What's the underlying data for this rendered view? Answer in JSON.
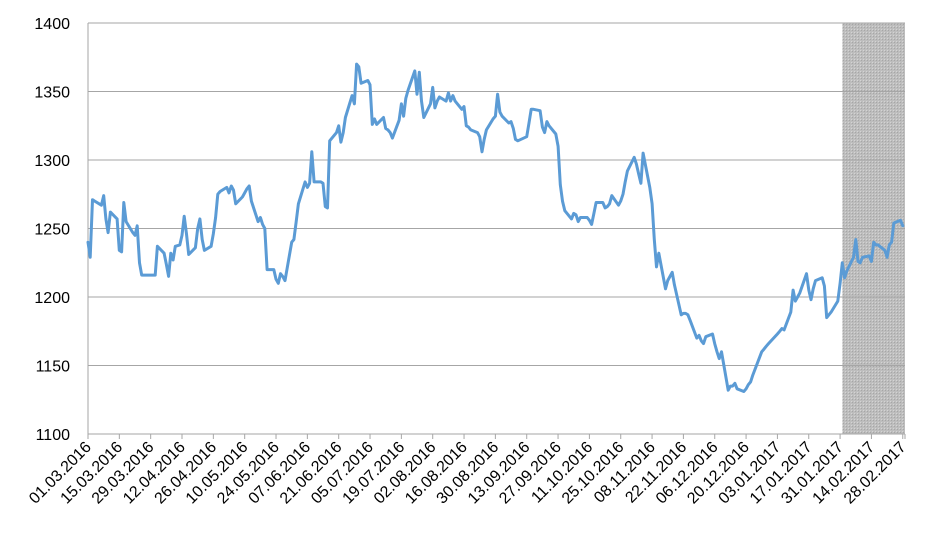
{
  "chart_data": {
    "type": "line",
    "title": "",
    "xlabel": "",
    "ylabel": "",
    "ylim": [
      1100,
      1400
    ],
    "y_ticks": [
      1100,
      1150,
      1200,
      1250,
      1300,
      1350,
      1400
    ],
    "grid": true,
    "legend": "none",
    "shaded_region": {
      "start": "2017-02-01",
      "end": "2017-03-01",
      "color": "#bfbfbf"
    },
    "x_tick_labels": [
      "01.03.2016",
      "15.03.2016",
      "29.03.2016",
      "12.04.2016",
      "26.04.2016",
      "10.05.2016",
      "24.05.2016",
      "07.06.2016",
      "21.06.2016",
      "05.07.2016",
      "19.07.2016",
      "02.08.2016",
      "16.08.2016",
      "30.08.2016",
      "13.09.2016",
      "27.09.2016",
      "11.10.2016",
      "25.10.2016",
      "08.11.2016",
      "22.11.2016",
      "06.12.2016",
      "20.12.2016",
      "03.01.2017",
      "17.01.2017",
      "31.01.2017",
      "14.02.2017",
      "28.02.2017"
    ],
    "series": [
      {
        "color": "#5b9bd5",
        "points": [
          [
            "2016-03-01",
            1240
          ],
          [
            "2016-03-02",
            1229
          ],
          [
            "2016-03-03",
            1271
          ],
          [
            "2016-03-04",
            1270
          ],
          [
            "2016-03-07",
            1267
          ],
          [
            "2016-03-08",
            1274
          ],
          [
            "2016-03-09",
            1257
          ],
          [
            "2016-03-10",
            1247
          ],
          [
            "2016-03-11",
            1262
          ],
          [
            "2016-03-14",
            1257
          ],
          [
            "2016-03-15",
            1234
          ],
          [
            "2016-03-16",
            1233
          ],
          [
            "2016-03-17",
            1269
          ],
          [
            "2016-03-18",
            1255
          ],
          [
            "2016-03-21",
            1247
          ],
          [
            "2016-03-22",
            1245
          ],
          [
            "2016-03-23",
            1252
          ],
          [
            "2016-03-24",
            1225
          ],
          [
            "2016-03-25",
            1216
          ],
          [
            "2016-03-31",
            1216
          ],
          [
            "2016-04-01",
            1237
          ],
          [
            "2016-04-04",
            1232
          ],
          [
            "2016-04-05",
            1224
          ],
          [
            "2016-04-06",
            1215
          ],
          [
            "2016-04-07",
            1232
          ],
          [
            "2016-04-08",
            1227
          ],
          [
            "2016-04-09",
            1237
          ],
          [
            "2016-04-11",
            1238
          ],
          [
            "2016-04-12",
            1245
          ],
          [
            "2016-04-13",
            1259
          ],
          [
            "2016-04-14",
            1246
          ],
          [
            "2016-04-15",
            1231
          ],
          [
            "2016-04-18",
            1236
          ],
          [
            "2016-04-19",
            1250
          ],
          [
            "2016-04-20",
            1257
          ],
          [
            "2016-04-21",
            1242
          ],
          [
            "2016-04-22",
            1234
          ],
          [
            "2016-04-25",
            1237
          ],
          [
            "2016-04-26",
            1246
          ],
          [
            "2016-04-27",
            1258
          ],
          [
            "2016-04-28",
            1275
          ],
          [
            "2016-04-29",
            1277
          ],
          [
            "2016-05-02",
            1280
          ],
          [
            "2016-05-03",
            1276
          ],
          [
            "2016-05-04",
            1281
          ],
          [
            "2016-05-05",
            1278
          ],
          [
            "2016-05-06",
            1268
          ],
          [
            "2016-05-09",
            1273
          ],
          [
            "2016-05-10",
            1276
          ],
          [
            "2016-05-11",
            1279
          ],
          [
            "2016-05-12",
            1281
          ],
          [
            "2016-05-13",
            1270
          ],
          [
            "2016-05-16",
            1255
          ],
          [
            "2016-05-17",
            1258
          ],
          [
            "2016-05-18",
            1253
          ],
          [
            "2016-05-19",
            1250
          ],
          [
            "2016-05-20",
            1220
          ],
          [
            "2016-05-23",
            1220
          ],
          [
            "2016-05-24",
            1213
          ],
          [
            "2016-05-25",
            1210
          ],
          [
            "2016-05-26",
            1217
          ],
          [
            "2016-05-27",
            1215
          ],
          [
            "2016-05-28",
            1212
          ],
          [
            "2016-05-31",
            1240
          ],
          [
            "2016-06-01",
            1242
          ],
          [
            "2016-06-02",
            1255
          ],
          [
            "2016-06-03",
            1268
          ],
          [
            "2016-06-06",
            1284
          ],
          [
            "2016-06-07",
            1280
          ],
          [
            "2016-06-08",
            1283
          ],
          [
            "2016-06-09",
            1306
          ],
          [
            "2016-06-10",
            1284
          ],
          [
            "2016-06-13",
            1284
          ],
          [
            "2016-06-14",
            1283
          ],
          [
            "2016-06-15",
            1266
          ],
          [
            "2016-06-16",
            1265
          ],
          [
            "2016-06-17",
            1314
          ],
          [
            "2016-06-20",
            1320
          ],
          [
            "2016-06-21",
            1325
          ],
          [
            "2016-06-22",
            1313
          ],
          [
            "2016-06-23",
            1320
          ],
          [
            "2016-06-24",
            1331
          ],
          [
            "2016-06-27",
            1347
          ],
          [
            "2016-06-28",
            1341
          ],
          [
            "2016-06-29",
            1370
          ],
          [
            "2016-06-30",
            1368
          ],
          [
            "2016-07-01",
            1356
          ],
          [
            "2016-07-04",
            1358
          ],
          [
            "2016-07-05",
            1355
          ],
          [
            "2016-07-06",
            1326
          ],
          [
            "2016-07-07",
            1330
          ],
          [
            "2016-07-08",
            1326
          ],
          [
            "2016-07-11",
            1331
          ],
          [
            "2016-07-12",
            1323
          ],
          [
            "2016-07-13",
            1322
          ],
          [
            "2016-07-14",
            1320
          ],
          [
            "2016-07-15",
            1316
          ],
          [
            "2016-07-18",
            1329
          ],
          [
            "2016-07-19",
            1341
          ],
          [
            "2016-07-20",
            1332
          ],
          [
            "2016-07-21",
            1345
          ],
          [
            "2016-07-22",
            1351
          ],
          [
            "2016-07-25",
            1365
          ],
          [
            "2016-07-26",
            1348
          ],
          [
            "2016-07-27",
            1364
          ],
          [
            "2016-07-28",
            1343
          ],
          [
            "2016-07-29",
            1331
          ],
          [
            "2016-08-01",
            1341
          ],
          [
            "2016-08-02",
            1353
          ],
          [
            "2016-08-03",
            1338
          ],
          [
            "2016-08-04",
            1343
          ],
          [
            "2016-08-05",
            1346
          ],
          [
            "2016-08-08",
            1343
          ],
          [
            "2016-08-09",
            1349
          ],
          [
            "2016-08-10",
            1343
          ],
          [
            "2016-08-11",
            1347
          ],
          [
            "2016-08-12",
            1343
          ],
          [
            "2016-08-15",
            1337
          ],
          [
            "2016-08-16",
            1339
          ],
          [
            "2016-08-17",
            1325
          ],
          [
            "2016-08-18",
            1324
          ],
          [
            "2016-08-19",
            1322
          ],
          [
            "2016-08-22",
            1320
          ],
          [
            "2016-08-23",
            1317
          ],
          [
            "2016-08-24",
            1306
          ],
          [
            "2016-08-25",
            1315
          ],
          [
            "2016-08-26",
            1322
          ],
          [
            "2016-08-29",
            1330
          ],
          [
            "2016-08-30",
            1332
          ],
          [
            "2016-08-31",
            1348
          ],
          [
            "2016-09-01",
            1335
          ],
          [
            "2016-09-02",
            1332
          ],
          [
            "2016-09-05",
            1327
          ],
          [
            "2016-09-06",
            1328
          ],
          [
            "2016-09-07",
            1323
          ],
          [
            "2016-09-08",
            1315
          ],
          [
            "2016-09-09",
            1314
          ],
          [
            "2016-09-13",
            1317
          ],
          [
            "2016-09-14",
            1327
          ],
          [
            "2016-09-15",
            1337
          ],
          [
            "2016-09-16",
            1337
          ],
          [
            "2016-09-19",
            1336
          ],
          [
            "2016-09-20",
            1324
          ],
          [
            "2016-09-21",
            1320
          ],
          [
            "2016-09-22",
            1328
          ],
          [
            "2016-09-23",
            1325
          ],
          [
            "2016-09-26",
            1319
          ],
          [
            "2016-09-27",
            1310
          ],
          [
            "2016-09-28",
            1282
          ],
          [
            "2016-09-29",
            1270
          ],
          [
            "2016-09-30",
            1263
          ],
          [
            "2016-10-03",
            1257
          ],
          [
            "2016-10-04",
            1261
          ],
          [
            "2016-10-05",
            1260
          ],
          [
            "2016-10-06",
            1255
          ],
          [
            "2016-10-07",
            1258
          ],
          [
            "2016-10-10",
            1258
          ],
          [
            "2016-10-11",
            1256
          ],
          [
            "2016-10-12",
            1253
          ],
          [
            "2016-10-13",
            1261
          ],
          [
            "2016-10-14",
            1269
          ],
          [
            "2016-10-17",
            1269
          ],
          [
            "2016-10-18",
            1265
          ],
          [
            "2016-10-19",
            1266
          ],
          [
            "2016-10-20",
            1268
          ],
          [
            "2016-10-21",
            1274
          ],
          [
            "2016-10-24",
            1267
          ],
          [
            "2016-10-25",
            1270
          ],
          [
            "2016-10-26",
            1275
          ],
          [
            "2016-10-27",
            1284
          ],
          [
            "2016-10-28",
            1292
          ],
          [
            "2016-10-31",
            1302
          ],
          [
            "2016-11-01",
            1297
          ],
          [
            "2016-11-02",
            1290
          ],
          [
            "2016-11-03",
            1283
          ],
          [
            "2016-11-04",
            1305
          ],
          [
            "2016-11-07",
            1280
          ],
          [
            "2016-11-08",
            1268
          ],
          [
            "2016-11-09",
            1242
          ],
          [
            "2016-11-10",
            1222
          ],
          [
            "2016-11-11",
            1232
          ],
          [
            "2016-11-14",
            1206
          ],
          [
            "2016-11-15",
            1212
          ],
          [
            "2016-11-16",
            1215
          ],
          [
            "2016-11-17",
            1218
          ],
          [
            "2016-11-18",
            1209
          ],
          [
            "2016-11-21",
            1187
          ],
          [
            "2016-11-22",
            1188
          ],
          [
            "2016-11-23",
            1188
          ],
          [
            "2016-11-24",
            1187
          ],
          [
            "2016-11-25",
            1183
          ],
          [
            "2016-11-28",
            1170
          ],
          [
            "2016-11-29",
            1172
          ],
          [
            "2016-11-30",
            1168
          ],
          [
            "2016-12-01",
            1166
          ],
          [
            "2016-12-02",
            1171
          ],
          [
            "2016-12-05",
            1173
          ],
          [
            "2016-12-06",
            1166
          ],
          [
            "2016-12-07",
            1160
          ],
          [
            "2016-12-08",
            1155
          ],
          [
            "2016-12-09",
            1160
          ],
          [
            "2016-12-12",
            1132
          ],
          [
            "2016-12-13",
            1135
          ],
          [
            "2016-12-14",
            1135
          ],
          [
            "2016-12-15",
            1137
          ],
          [
            "2016-12-16",
            1133
          ],
          [
            "2016-12-19",
            1131
          ],
          [
            "2016-12-20",
            1133
          ],
          [
            "2016-12-21",
            1136
          ],
          [
            "2016-12-22",
            1138
          ],
          [
            "2016-12-23",
            1143
          ],
          [
            "2016-12-27",
            1160
          ],
          [
            "2016-12-28",
            1162
          ],
          [
            "2016-12-29",
            1164
          ],
          [
            "2016-12-30",
            1166
          ],
          [
            "2017-01-03",
            1173
          ],
          [
            "2017-01-04",
            1175
          ],
          [
            "2017-01-05",
            1177
          ],
          [
            "2017-01-06",
            1176
          ],
          [
            "2017-01-09",
            1189
          ],
          [
            "2017-01-10",
            1205
          ],
          [
            "2017-01-11",
            1197
          ],
          [
            "2017-01-12",
            1200
          ],
          [
            "2017-01-13",
            1203
          ],
          [
            "2017-01-16",
            1217
          ],
          [
            "2017-01-17",
            1205
          ],
          [
            "2017-01-18",
            1198
          ],
          [
            "2017-01-19",
            1206
          ],
          [
            "2017-01-20",
            1212
          ],
          [
            "2017-01-23",
            1214
          ],
          [
            "2017-01-24",
            1208
          ],
          [
            "2017-01-25",
            1185
          ],
          [
            "2017-01-26",
            1187
          ],
          [
            "2017-01-27",
            1189
          ],
          [
            "2017-01-30",
            1197
          ],
          [
            "2017-01-31",
            1210
          ],
          [
            "2017-02-01",
            1225
          ],
          [
            "2017-02-02",
            1214
          ],
          [
            "2017-02-03",
            1219
          ],
          [
            "2017-02-06",
            1229
          ],
          [
            "2017-02-07",
            1242
          ],
          [
            "2017-02-08",
            1226
          ],
          [
            "2017-02-09",
            1225
          ],
          [
            "2017-02-10",
            1229
          ],
          [
            "2017-02-13",
            1230
          ],
          [
            "2017-02-14",
            1226
          ],
          [
            "2017-02-15",
            1240
          ],
          [
            "2017-02-16",
            1238
          ],
          [
            "2017-02-17",
            1238
          ],
          [
            "2017-02-20",
            1234
          ],
          [
            "2017-02-21",
            1229
          ],
          [
            "2017-02-22",
            1238
          ],
          [
            "2017-02-23",
            1240
          ],
          [
            "2017-02-24",
            1254
          ],
          [
            "2017-02-27",
            1256
          ],
          [
            "2017-02-28",
            1252
          ]
        ]
      }
    ]
  }
}
